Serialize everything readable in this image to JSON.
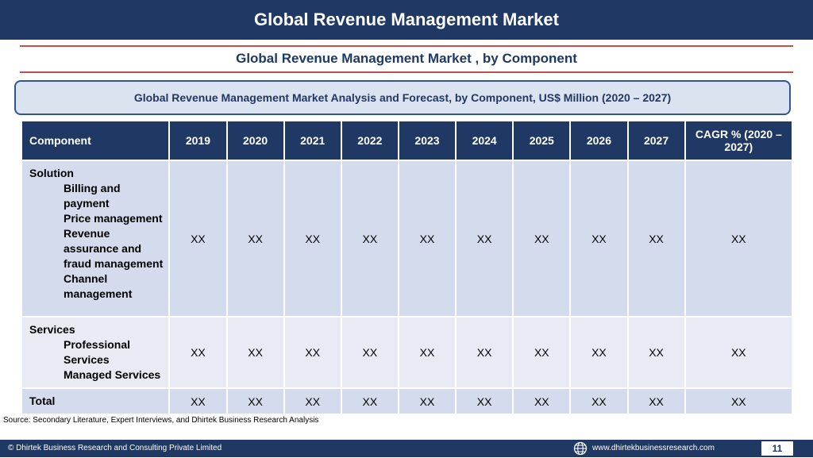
{
  "header": {
    "title": "Global Revenue Management Market"
  },
  "subtitle": "Global Revenue Management Market , by Component",
  "analysis_title": "Global Revenue Management Market  Analysis and Forecast, by Component, US$ Million (2020 – 2027)",
  "table": {
    "headers": [
      "Component",
      "2019",
      "2020",
      "2021",
      "2022",
      "2023",
      "2024",
      "2025",
      "2026",
      "2027",
      "CAGR % (2020 – 2027)"
    ],
    "rows": [
      {
        "label": "Solution",
        "subitems": [
          "Billing and payment",
          "Price management",
          "Revenue assurance and fraud management",
          "Channel management"
        ],
        "values": [
          "XX",
          "XX",
          "XX",
          "XX",
          "XX",
          "XX",
          "XX",
          "XX",
          "XX",
          "XX"
        ]
      },
      {
        "label": "Services",
        "subitems": [
          "Professional Services",
          "Managed Services"
        ],
        "values": [
          "XX",
          "XX",
          "XX",
          "XX",
          "XX",
          "XX",
          "XX",
          "XX",
          "XX",
          "XX"
        ]
      },
      {
        "label": "Total",
        "subitems": [],
        "values": [
          "XX",
          "XX",
          "XX",
          "XX",
          "XX",
          "XX",
          "XX",
          "XX",
          "XX",
          "XX"
        ]
      }
    ]
  },
  "source": "Source: Secondary Literature, Expert Interviews, and Dhirtek Business Research Analysis",
  "footer": {
    "copyright": "© Dhirtek Business Research and Consulting Private Limited",
    "website": "www.dhirtekbusinessresearch.com",
    "page_number": "11",
    "globe_icon": "globe-icon"
  },
  "colors": {
    "navy": "#1f3864",
    "red_rule": "#c0504d",
    "row_light": "#d4dbec",
    "row_lighter": "#e8ebf4",
    "box_fill": "#dce3f0"
  }
}
